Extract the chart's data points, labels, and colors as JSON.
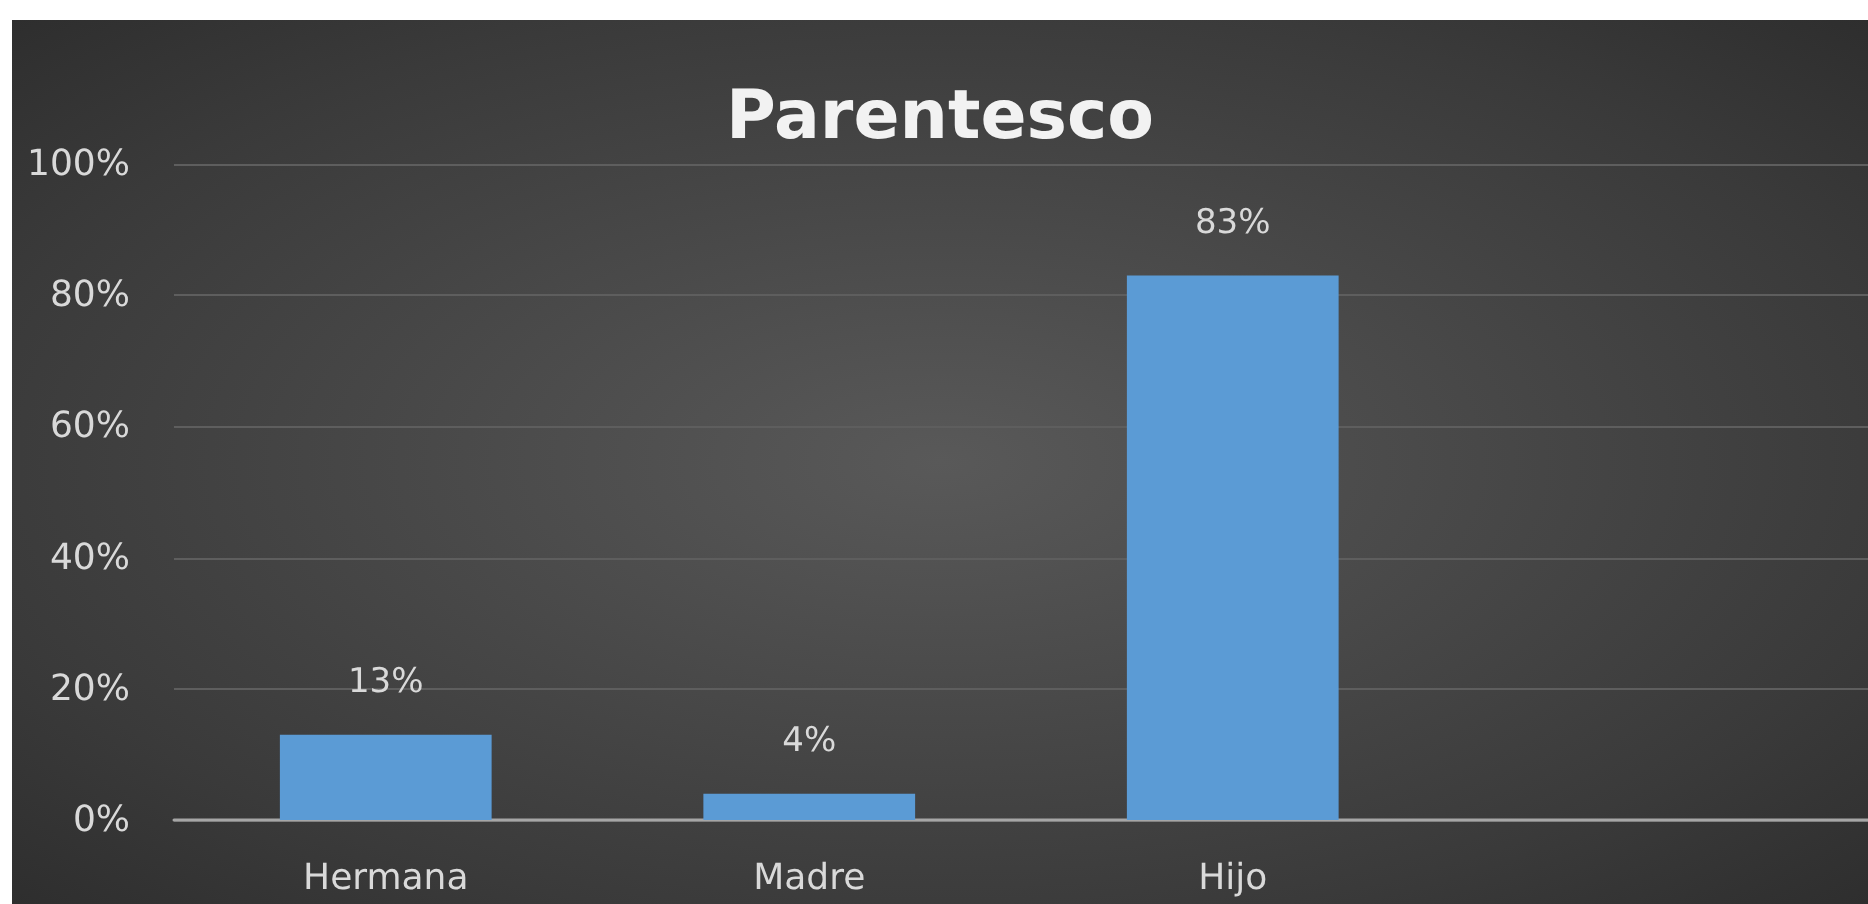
{
  "chart_data": {
    "type": "bar",
    "title": "Parentesco",
    "categories": [
      "Hermana",
      "Madre",
      "Hijo",
      null
    ],
    "values": [
      13,
      4,
      83,
      null
    ],
    "value_labels": [
      "13%",
      "4%",
      "83%",
      null
    ],
    "color": "#5b9bd5",
    "ylim": [
      0,
      100
    ],
    "yticks": [
      {
        "value": 0,
        "label": "0%"
      },
      {
        "value": 20,
        "label": "20%"
      },
      {
        "value": 40,
        "label": "40%"
      },
      {
        "value": 60,
        "label": "60%"
      },
      {
        "value": 80,
        "label": "80%"
      },
      {
        "value": 100,
        "label": "100%"
      }
    ],
    "grid": "y"
  }
}
